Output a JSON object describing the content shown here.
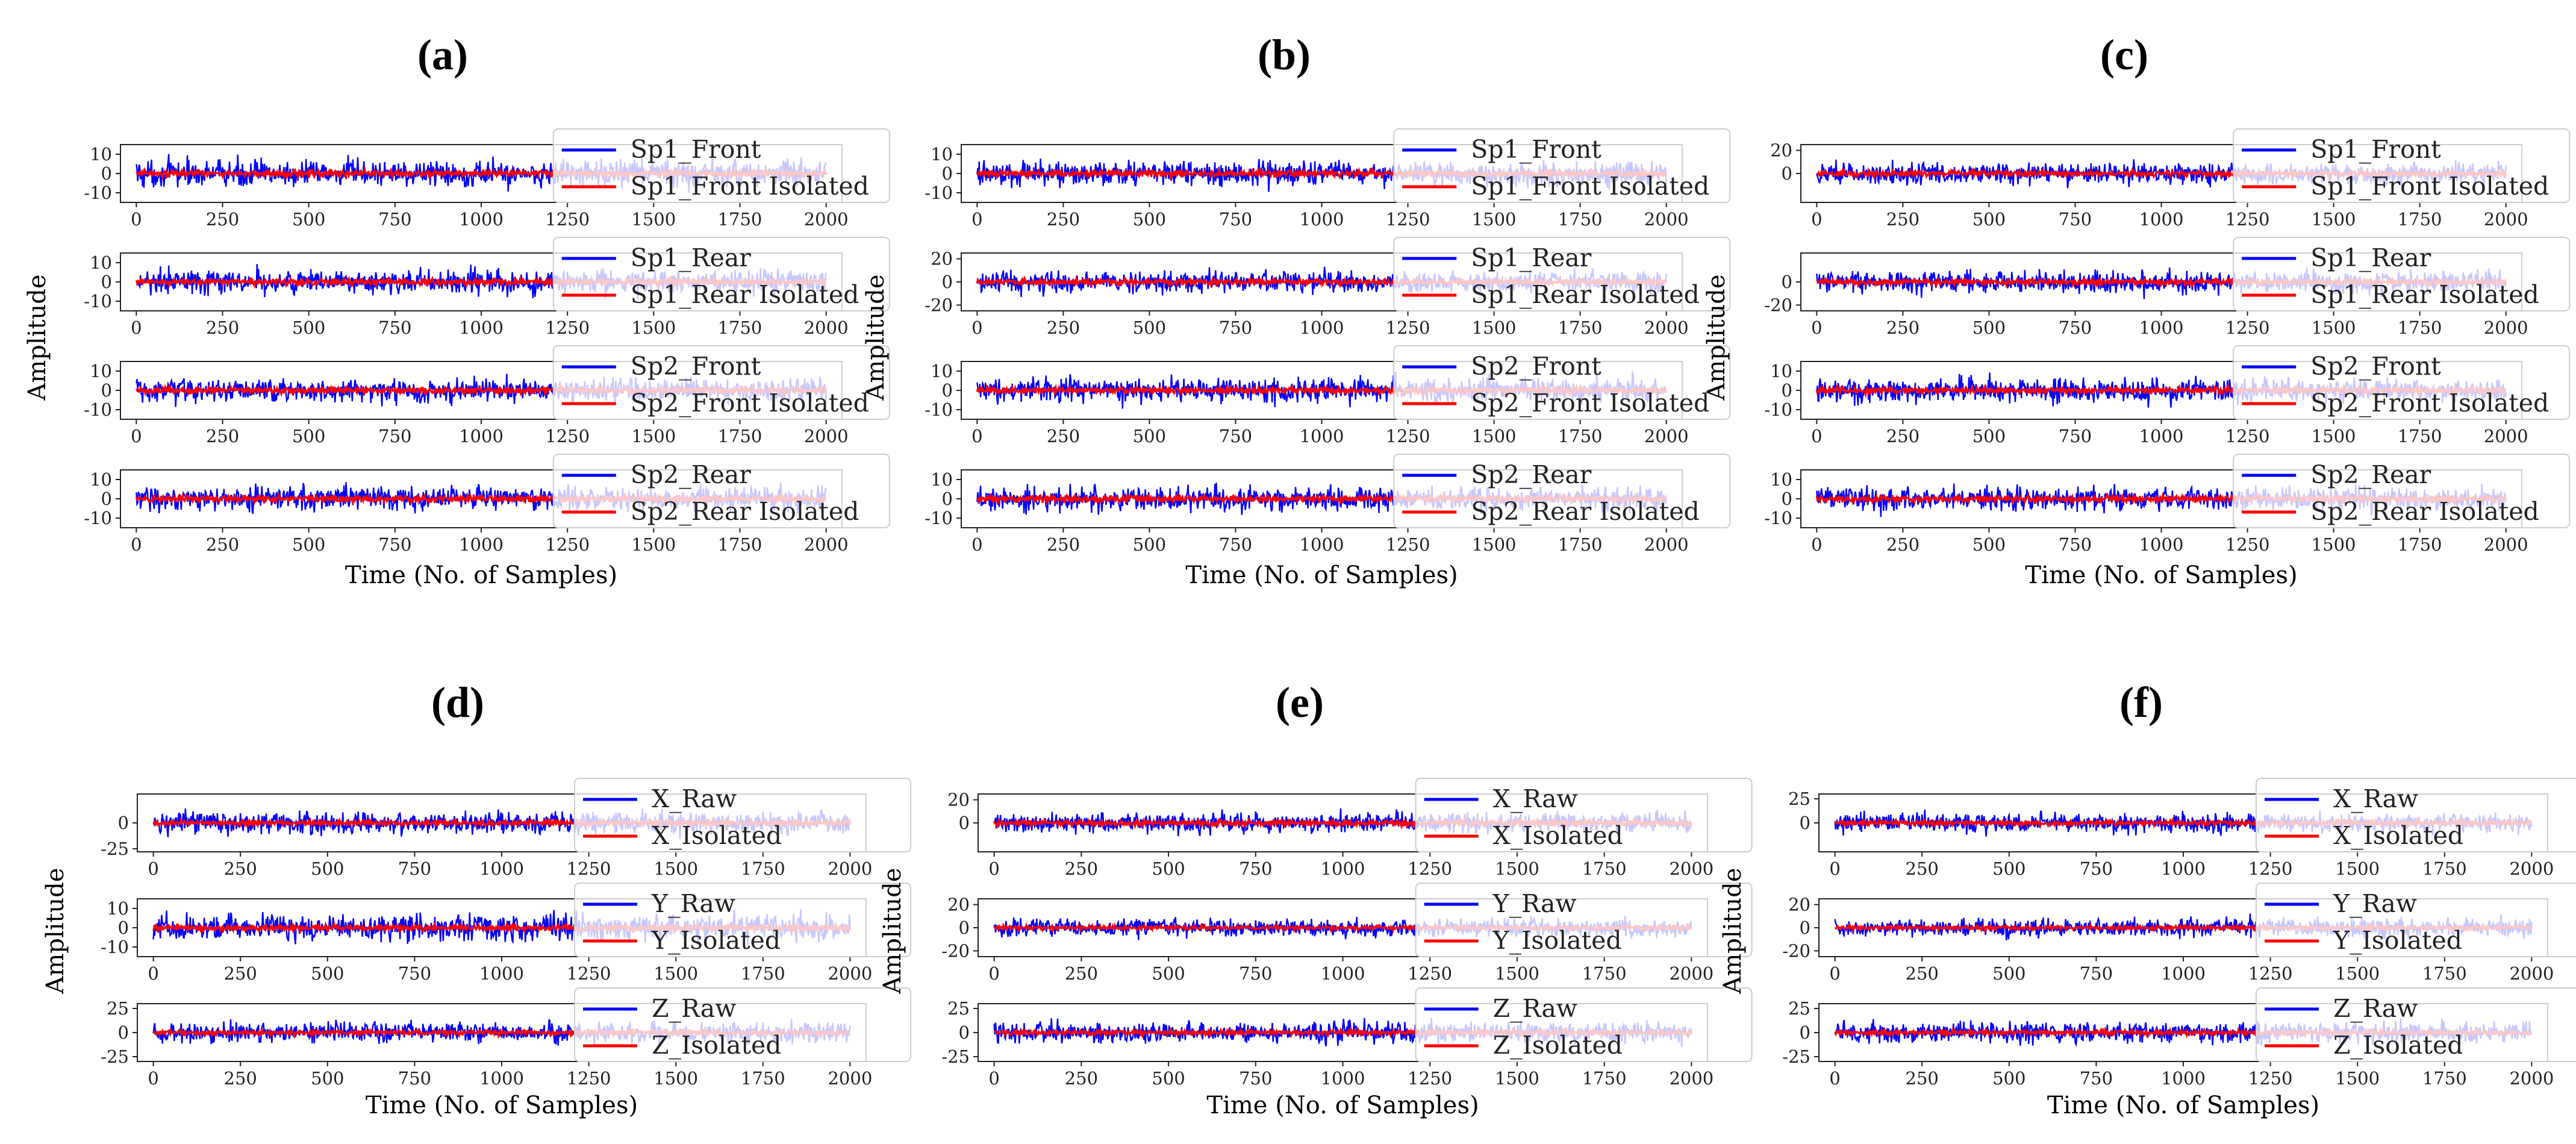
{
  "chart_data": [
    {
      "panel": "(a)",
      "type": "line",
      "xlabel": "Time (No. of Samples)",
      "ylabel": "Amplitude",
      "xlim": [
        0,
        2000
      ],
      "xticks": [
        0,
        250,
        500,
        750,
        1000,
        1250,
        1500,
        1750,
        2000
      ],
      "subplots": [
        {
          "series": [
            {
              "name": "Sp1_Front",
              "color": "#0000ff",
              "amplitude": 9
            },
            {
              "name": "Sp1_Front Isolated",
              "color": "#ff0000",
              "amplitude": 2
            }
          ],
          "ylim": [
            -15,
            15
          ],
          "yticks": [
            10,
            0,
            -10
          ]
        },
        {
          "series": [
            {
              "name": "Sp1_Rear",
              "color": "#0000ff",
              "amplitude": 8
            },
            {
              "name": "Sp1_Rear Isolated",
              "color": "#ff0000",
              "amplitude": 2
            }
          ],
          "ylim": [
            -15,
            15
          ],
          "yticks": [
            10,
            0,
            -10
          ]
        },
        {
          "series": [
            {
              "name": "Sp2_Front",
              "color": "#0000ff",
              "amplitude": 8
            },
            {
              "name": "Sp2_Front Isolated",
              "color": "#ff0000",
              "amplitude": 2
            }
          ],
          "ylim": [
            -15,
            15
          ],
          "yticks": [
            10,
            0,
            -10
          ]
        },
        {
          "series": [
            {
              "name": "Sp2_Rear",
              "color": "#0000ff",
              "amplitude": 8
            },
            {
              "name": "Sp2_Rear Isolated",
              "color": "#ff0000",
              "amplitude": 2
            }
          ],
          "ylim": [
            -15,
            15
          ],
          "yticks": [
            10,
            0,
            -10
          ]
        }
      ]
    },
    {
      "panel": "(b)",
      "type": "line",
      "xlabel": "Time (No. of Samples)",
      "ylabel": "Amplitude",
      "xlim": [
        0,
        2000
      ],
      "xticks": [
        0,
        250,
        500,
        750,
        1000,
        1250,
        1500,
        1750,
        2000
      ],
      "subplots": [
        {
          "series": [
            {
              "name": "Sp1_Front",
              "color": "#0000ff",
              "amplitude": 8
            },
            {
              "name": "Sp1_Front Isolated",
              "color": "#ff0000",
              "amplitude": 2
            }
          ],
          "ylim": [
            -15,
            15
          ],
          "yticks": [
            10,
            0,
            -10
          ]
        },
        {
          "series": [
            {
              "name": "Sp1_Rear",
              "color": "#0000ff",
              "amplitude": 12
            },
            {
              "name": "Sp1_Rear Isolated",
              "color": "#ff0000",
              "amplitude": 3
            }
          ],
          "ylim": [
            -25,
            25
          ],
          "yticks": [
            20,
            0,
            -20
          ]
        },
        {
          "series": [
            {
              "name": "Sp2_Front",
              "color": "#0000ff",
              "amplitude": 8
            },
            {
              "name": "Sp2_Front Isolated",
              "color": "#ff0000",
              "amplitude": 2
            }
          ],
          "ylim": [
            -15,
            15
          ],
          "yticks": [
            10,
            0,
            -10
          ]
        },
        {
          "series": [
            {
              "name": "Sp2_Rear",
              "color": "#0000ff",
              "amplitude": 8
            },
            {
              "name": "Sp2_Rear Isolated",
              "color": "#ff0000",
              "amplitude": 2
            }
          ],
          "ylim": [
            -15,
            15
          ],
          "yticks": [
            10,
            0,
            -10
          ]
        }
      ]
    },
    {
      "panel": "(c)",
      "type": "line",
      "xlabel": "Time (No. of Samples)",
      "ylabel": "Amplitude",
      "xlim": [
        0,
        2000
      ],
      "xticks": [
        0,
        250,
        500,
        750,
        1000,
        1250,
        1500,
        1750,
        2000
      ],
      "subplots": [
        {
          "series": [
            {
              "name": "Sp1_Front",
              "color": "#0000ff",
              "amplitude": 12
            },
            {
              "name": "Sp1_Front Isolated",
              "color": "#ff0000",
              "amplitude": 3
            }
          ],
          "ylim": [
            -25,
            25
          ],
          "yticks": [
            20,
            0
          ]
        },
        {
          "series": [
            {
              "name": "Sp1_Rear",
              "color": "#0000ff",
              "amplitude": 12
            },
            {
              "name": "Sp1_Rear Isolated",
              "color": "#ff0000",
              "amplitude": 3
            }
          ],
          "ylim": [
            -25,
            25
          ],
          "yticks": [
            0,
            -20
          ]
        },
        {
          "series": [
            {
              "name": "Sp2_Front",
              "color": "#0000ff",
              "amplitude": 8
            },
            {
              "name": "Sp2_Front Isolated",
              "color": "#ff0000",
              "amplitude": 2
            }
          ],
          "ylim": [
            -15,
            15
          ],
          "yticks": [
            10,
            0,
            -10
          ]
        },
        {
          "series": [
            {
              "name": "Sp2_Rear",
              "color": "#0000ff",
              "amplitude": 8
            },
            {
              "name": "Sp2_Rear Isolated",
              "color": "#ff0000",
              "amplitude": 2
            }
          ],
          "ylim": [
            -15,
            15
          ],
          "yticks": [
            10,
            0,
            -10
          ]
        }
      ]
    },
    {
      "panel": "(d)",
      "type": "line",
      "xlabel": "Time (No. of Samples)",
      "ylabel": "Amplitude",
      "xlim": [
        0,
        2000
      ],
      "xticks": [
        0,
        250,
        500,
        750,
        1000,
        1250,
        1500,
        1750,
        2000
      ],
      "subplots": [
        {
          "series": [
            {
              "name": "X_Raw",
              "color": "#0000ff",
              "amplitude": 14
            },
            {
              "name": "X_Isolated",
              "color": "#ff0000",
              "amplitude": 3
            }
          ],
          "ylim": [
            -28,
            28
          ],
          "yticks": [
            0,
            -25
          ]
        },
        {
          "series": [
            {
              "name": "Y_Raw",
              "color": "#0000ff",
              "amplitude": 9
            },
            {
              "name": "Y_Isolated",
              "color": "#ff0000",
              "amplitude": 2
            }
          ],
          "ylim": [
            -15,
            15
          ],
          "yticks": [
            10,
            0,
            -10
          ]
        },
        {
          "series": [
            {
              "name": "Z_Raw",
              "color": "#0000ff",
              "amplitude": 14
            },
            {
              "name": "Z_Isolated",
              "color": "#ff0000",
              "amplitude": 3
            }
          ],
          "ylim": [
            -30,
            30
          ],
          "yticks": [
            25,
            0,
            -25
          ]
        }
      ]
    },
    {
      "panel": "(e)",
      "type": "line",
      "xlabel": "Time (No. of Samples)",
      "ylabel": "Amplitude",
      "xlim": [
        0,
        2000
      ],
      "xticks": [
        0,
        250,
        500,
        750,
        1000,
        1250,
        1500,
        1750,
        2000
      ],
      "subplots": [
        {
          "series": [
            {
              "name": "X_Raw",
              "color": "#0000ff",
              "amplitude": 11
            },
            {
              "name": "X_Isolated",
              "color": "#ff0000",
              "amplitude": 3
            }
          ],
          "ylim": [
            -25,
            25
          ],
          "yticks": [
            20,
            0
          ]
        },
        {
          "series": [
            {
              "name": "Y_Raw",
              "color": "#0000ff",
              "amplitude": 10
            },
            {
              "name": "Y_Isolated",
              "color": "#ff0000",
              "amplitude": 2
            }
          ],
          "ylim": [
            -25,
            25
          ],
          "yticks": [
            20,
            0,
            -20
          ]
        },
        {
          "series": [
            {
              "name": "Z_Raw",
              "color": "#0000ff",
              "amplitude": 14
            },
            {
              "name": "Z_Isolated",
              "color": "#ff0000",
              "amplitude": 3
            }
          ],
          "ylim": [
            -30,
            30
          ],
          "yticks": [
            25,
            0,
            -25
          ]
        }
      ]
    },
    {
      "panel": "(f)",
      "type": "line",
      "xlabel": "Time (No. of Samples)",
      "ylabel": "Amplitude",
      "xlim": [
        0,
        2000
      ],
      "xticks": [
        0,
        250,
        500,
        750,
        1000,
        1250,
        1500,
        1750,
        2000
      ],
      "subplots": [
        {
          "series": [
            {
              "name": "X_Raw",
              "color": "#0000ff",
              "amplitude": 13
            },
            {
              "name": "X_Isolated",
              "color": "#ff0000",
              "amplitude": 3
            }
          ],
          "ylim": [
            -30,
            30
          ],
          "yticks": [
            25,
            0
          ]
        },
        {
          "series": [
            {
              "name": "Y_Raw",
              "color": "#0000ff",
              "amplitude": 10
            },
            {
              "name": "Y_Isolated",
              "color": "#ff0000",
              "amplitude": 2
            }
          ],
          "ylim": [
            -25,
            25
          ],
          "yticks": [
            20,
            0,
            -20
          ]
        },
        {
          "series": [
            {
              "name": "Z_Raw",
              "color": "#0000ff",
              "amplitude": 14
            },
            {
              "name": "Z_Isolated",
              "color": "#ff0000",
              "amplitude": 3
            }
          ],
          "ylim": [
            -30,
            30
          ],
          "yticks": [
            25,
            0,
            -25
          ]
        }
      ]
    }
  ]
}
